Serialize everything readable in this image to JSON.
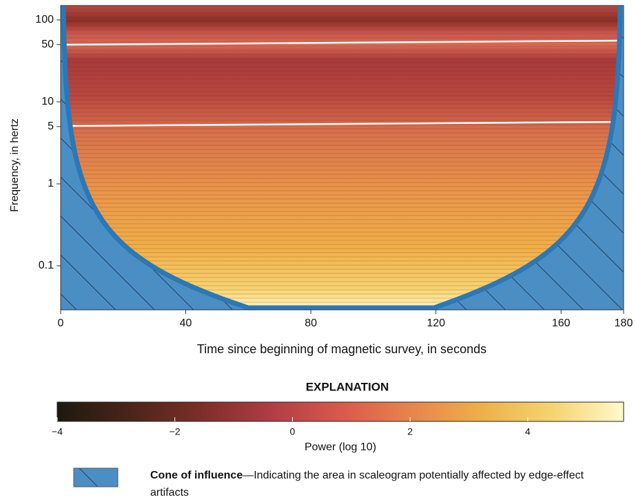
{
  "chart_data": {
    "type": "heatmap",
    "y_label": "Frequency, in hertz",
    "x_label": "Time since beginning of magnetic survey, in seconds",
    "xlim": [
      0,
      180
    ],
    "xticks": [
      0,
      40,
      80,
      120,
      160,
      180
    ],
    "ylim": [
      0.029,
      150
    ],
    "yticks": [
      100,
      50,
      10,
      5,
      1,
      0.1
    ],
    "y_scale": "log",
    "colorbar": {
      "title": "EXPLANATION",
      "label": "Power (log 10)",
      "clim": [
        -4,
        5.63
      ],
      "ticks": [
        {
          "value": -4,
          "label": "−4"
        },
        {
          "value": -2,
          "label": "−2"
        },
        0,
        2,
        4
      ],
      "colormap": [
        "#1d1a0f",
        "#4a2418",
        "#7a2e26",
        "#b03c44",
        "#d9584c",
        "#e8844c",
        "#eeb04a",
        "#f5d470",
        "#fff9cc"
      ]
    },
    "legend": {
      "label": "Cone of influence",
      "description": "—Indicating the area in scaleogram potentially affected by edge-effect artifacts",
      "color": "#4a8ec4"
    }
  }
}
